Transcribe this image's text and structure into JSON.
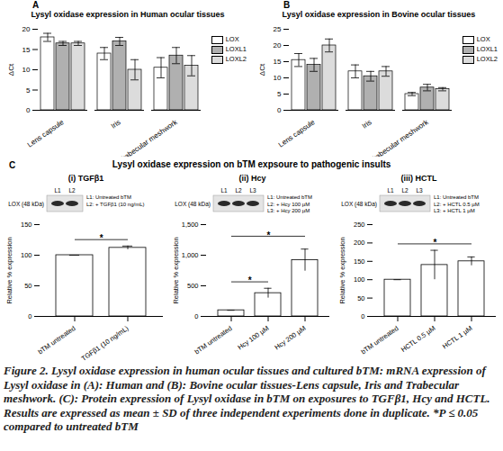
{
  "caption": "Figure 2. Lysyl oxidase expression in human ocular tissues and cultured bTM: mRNA expression of Lysyl oxidase in (A): Human and (B): Bovine ocular tissues-Lens capsule, Iris and Trabecular meshwork. (C): Protein expression of Lysyl oxidase in bTM on exposures to TGFβ1, Hcy and HCTL. Results are expressed as mean ± SD of three independent experiments done in duplicate. *P ≤ 0.05 compared to untreated bTM",
  "panel_c": {
    "letter": "C",
    "title": "Lysyl oxidase expression on bTM expsoure to pathogenic insults"
  },
  "chart_data": [
    {
      "panel": "A",
      "type": "bar",
      "title": "Lysyl oxidase expression in Human ocular tissues",
      "categories": [
        "Lens capsule",
        "Iris",
        "Trabecular meshwork"
      ],
      "series": [
        {
          "name": "LOX",
          "color": "#ffffff",
          "values": [
            18,
            14,
            10.5
          ],
          "errors": [
            1,
            1.5,
            2.5
          ]
        },
        {
          "name": "LOXL1",
          "color": "#b0b0b0",
          "values": [
            16.5,
            17,
            13.5
          ],
          "errors": [
            0.5,
            1,
            2
          ]
        },
        {
          "name": "LOXL2",
          "color": "#dcdcdc",
          "values": [
            16.5,
            10,
            11
          ],
          "errors": [
            0.5,
            2.5,
            2.5
          ]
        }
      ],
      "y_label": "ΔCt",
      "ylim": [
        0,
        20
      ],
      "yticks": [
        0,
        5,
        10,
        15,
        20
      ],
      "legend": "top-right"
    },
    {
      "panel": "B",
      "type": "bar",
      "title": "Lysyl oxidase expression in Bovine ocular tissues",
      "categories": [
        "Lens capsule",
        "Iris",
        "Trabecular meshwork"
      ],
      "series": [
        {
          "name": "LOX",
          "color": "#ffffff",
          "values": [
            15.5,
            12,
            5
          ],
          "errors": [
            2,
            2,
            0.5
          ]
        },
        {
          "name": "LOXL1",
          "color": "#b0b0b0",
          "values": [
            14,
            10.5,
            7
          ],
          "errors": [
            2,
            1.5,
            1
          ]
        },
        {
          "name": "LOXL2",
          "color": "#dcdcdc",
          "values": [
            20,
            12,
            6.5
          ],
          "errors": [
            2,
            1.5,
            0.5
          ]
        }
      ],
      "y_label": "ΔCt",
      "ylim": [
        0,
        25
      ],
      "yticks": [
        0,
        5,
        10,
        15,
        20,
        25
      ],
      "legend": "top-right"
    },
    {
      "type": "bar",
      "title": "(i) TGFβ1",
      "categories": [
        "bTM untreated",
        "TGFβ1 (10 ng/mL)"
      ],
      "values": [
        100,
        112
      ],
      "errors": [
        0,
        3
      ],
      "color": "#ffffff",
      "y_label": "Relative % expression",
      "ylim": [
        0,
        150
      ],
      "yticks": [
        0,
        50,
        100,
        150
      ],
      "annotations": [
        {
          "text": "*",
          "from": 0,
          "to": 1
        }
      ],
      "blot": {
        "label": "LOX (48 kDa)",
        "lanes": [
          "L1",
          "L2"
        ],
        "key": [
          "L1: Untreated bTM",
          "L2: + TGFβ1 (10 ng/mL)"
        ]
      }
    },
    {
      "type": "bar",
      "title": "(ii) Hcy",
      "categories": [
        "bTM untreated",
        "Hcy 100 µM",
        "Hcy 200 µM"
      ],
      "values": [
        100,
        380,
        920
      ],
      "errors": [
        0,
        80,
        180
      ],
      "color": "#ffffff",
      "y_label": "Relative % expression",
      "ylim": [
        0,
        1500
      ],
      "yticks": [
        0,
        500,
        1000,
        1500
      ],
      "annotations": [
        {
          "text": "*",
          "from": 0,
          "to": 1
        },
        {
          "text": "*",
          "from": 0,
          "to": 2
        }
      ],
      "blot": {
        "label": "LOX (48 kDa)",
        "lanes": [
          "L1",
          "L2",
          "L3"
        ],
        "key": [
          "L1: Untreated bTM",
          "L2: + Hcy 100 µM",
          "L3: + Hcy 200 µM"
        ]
      }
    },
    {
      "type": "bar",
      "title": "(iii) HCTL",
      "categories": [
        "bTM untreated",
        "HCTL 0.5 µM",
        "HCTL 1 µM"
      ],
      "values": [
        100,
        140,
        150
      ],
      "errors": [
        0,
        40,
        12
      ],
      "color": "#ffffff",
      "y_label": "Relative % expression",
      "ylim": [
        0,
        250
      ],
      "yticks": [
        0,
        50,
        100,
        150,
        200,
        250
      ],
      "annotations": [
        {
          "text": "*",
          "from": 0,
          "to": 2
        }
      ],
      "blot": {
        "label": "LOX (48 kDa)",
        "lanes": [
          "L1",
          "L2",
          "L3"
        ],
        "key": [
          "L1: Untreated bTM",
          "L2: + HCTL 0.5 µM",
          "L3: + HCTL 1 µM"
        ]
      }
    }
  ]
}
